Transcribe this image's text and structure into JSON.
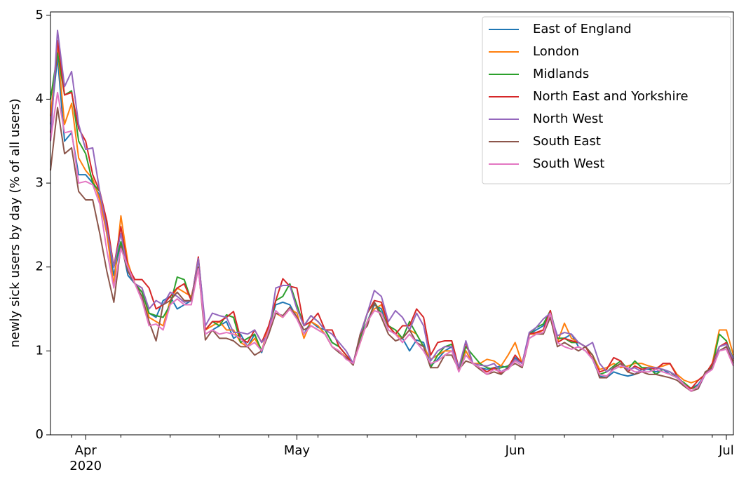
{
  "chart_data": {
    "type": "line",
    "ylabel": "newly sick users by day (% of all users)",
    "xlim": [
      0,
      97
    ],
    "xticks": [
      {
        "value": 5,
        "label": "Apr\n2020"
      },
      {
        "value": 35,
        "label": "May"
      },
      {
        "value": 66,
        "label": "Jun"
      },
      {
        "value": 96,
        "label": "Jul"
      }
    ],
    "xminorticks": [
      3,
      10,
      17,
      24,
      31,
      38,
      45,
      52,
      59,
      73,
      80,
      87,
      94
    ],
    "ylim": [
      0,
      5.04
    ],
    "yticks": [
      0,
      1,
      2,
      3,
      4,
      5
    ],
    "grid": false,
    "legend": "upper right",
    "series": [
      {
        "name": "East of England",
        "color": "#1f77b4",
        "values": [
          3.7,
          4.5,
          3.5,
          3.6,
          3.1,
          3.1,
          3.0,
          2.85,
          2.4,
          1.9,
          2.3,
          1.9,
          1.8,
          1.7,
          1.45,
          1.4,
          1.6,
          1.65,
          1.5,
          1.55,
          1.6,
          2.0,
          1.2,
          1.25,
          1.3,
          1.35,
          1.15,
          1.2,
          1.05,
          1.2,
          0.98,
          1.3,
          1.55,
          1.58,
          1.55,
          1.4,
          1.2,
          1.35,
          1.28,
          1.25,
          1.1,
          1.05,
          0.95,
          0.85,
          1.15,
          1.35,
          1.55,
          1.5,
          1.25,
          1.2,
          1.15,
          1.0,
          1.13,
          1.1,
          0.82,
          0.9,
          1.0,
          1.05,
          0.78,
          1.0,
          0.85,
          0.8,
          0.78,
          0.8,
          0.82,
          0.8,
          0.92,
          0.85,
          1.2,
          1.25,
          1.3,
          1.45,
          1.15,
          1.15,
          1.2,
          1.05,
          1.0,
          0.9,
          0.7,
          0.68,
          0.75,
          0.72,
          0.7,
          0.72,
          0.78,
          0.78,
          0.75,
          0.78,
          0.72,
          0.68,
          0.6,
          0.55,
          0.6,
          0.72,
          0.85,
          1.0,
          1.05,
          0.92
        ]
      },
      {
        "name": "London",
        "color": "#ff7f0e",
        "values": [
          3.8,
          4.6,
          3.7,
          3.95,
          3.3,
          3.15,
          3.05,
          2.8,
          2.4,
          1.78,
          2.61,
          2.05,
          1.8,
          1.75,
          1.4,
          1.35,
          1.3,
          1.6,
          1.75,
          1.7,
          1.65,
          2.0,
          1.25,
          1.3,
          1.35,
          1.25,
          1.25,
          1.1,
          1.05,
          1.15,
          1.0,
          1.3,
          1.45,
          1.4,
          1.5,
          1.45,
          1.15,
          1.35,
          1.3,
          1.2,
          1.05,
          1.0,
          0.92,
          0.85,
          1.1,
          1.35,
          1.5,
          1.55,
          1.3,
          1.2,
          1.15,
          1.25,
          1.2,
          1.05,
          0.9,
          0.95,
          1.0,
          1.0,
          0.8,
          1.0,
          0.85,
          0.85,
          0.9,
          0.88,
          0.82,
          0.95,
          1.1,
          0.85,
          1.2,
          1.2,
          1.25,
          1.4,
          1.1,
          1.33,
          1.15,
          1.1,
          1.05,
          0.95,
          0.78,
          0.8,
          0.85,
          0.8,
          0.82,
          0.85,
          0.85,
          0.82,
          0.8,
          0.82,
          0.85,
          0.72,
          0.65,
          0.62,
          0.65,
          0.72,
          0.85,
          1.25,
          1.25,
          0.95
        ]
      },
      {
        "name": "Midlands",
        "color": "#2ca02c",
        "values": [
          4.0,
          4.55,
          4.05,
          4.1,
          3.5,
          3.35,
          3.0,
          2.9,
          2.5,
          2.0,
          2.3,
          2.0,
          1.8,
          1.7,
          1.45,
          1.42,
          1.4,
          1.55,
          1.88,
          1.85,
          1.6,
          2.1,
          1.25,
          1.35,
          1.3,
          1.43,
          1.4,
          1.1,
          1.15,
          1.2,
          1.0,
          1.25,
          1.6,
          1.65,
          1.8,
          1.55,
          1.3,
          1.42,
          1.35,
          1.25,
          1.1,
          1.05,
          0.95,
          0.85,
          1.15,
          1.45,
          1.58,
          1.45,
          1.3,
          1.25,
          1.15,
          1.35,
          1.2,
          1.05,
          0.8,
          0.95,
          1.05,
          1.08,
          0.78,
          1.05,
          0.95,
          0.85,
          0.8,
          0.78,
          0.8,
          0.82,
          0.9,
          0.85,
          1.2,
          1.28,
          1.32,
          1.48,
          1.15,
          1.15,
          1.1,
          1.1,
          1.05,
          0.95,
          0.72,
          0.75,
          0.82,
          0.88,
          0.78,
          0.88,
          0.8,
          0.8,
          0.72,
          0.78,
          0.75,
          0.68,
          0.62,
          0.55,
          0.58,
          0.72,
          0.82,
          1.2,
          1.12,
          0.9
        ]
      },
      {
        "name": "North East and Yorkshire",
        "color": "#d62728",
        "values": [
          3.6,
          4.7,
          4.05,
          4.08,
          3.65,
          3.5,
          3.1,
          2.9,
          2.55,
          2.0,
          2.48,
          2.0,
          1.85,
          1.85,
          1.75,
          1.5,
          1.55,
          1.65,
          1.75,
          1.8,
          1.6,
          2.12,
          1.25,
          1.35,
          1.35,
          1.4,
          1.47,
          1.15,
          1.1,
          1.25,
          1.1,
          1.3,
          1.6,
          1.86,
          1.77,
          1.75,
          1.3,
          1.35,
          1.45,
          1.25,
          1.25,
          1.05,
          0.95,
          0.85,
          1.2,
          1.45,
          1.6,
          1.58,
          1.3,
          1.2,
          1.3,
          1.3,
          1.5,
          1.4,
          0.95,
          1.1,
          1.12,
          1.12,
          0.8,
          1.1,
          0.85,
          0.8,
          0.75,
          0.8,
          0.73,
          0.8,
          0.95,
          0.85,
          1.2,
          1.22,
          1.25,
          1.48,
          1.1,
          1.15,
          1.12,
          1.1,
          1.05,
          0.9,
          0.75,
          0.78,
          0.92,
          0.88,
          0.75,
          0.82,
          0.78,
          0.8,
          0.78,
          0.85,
          0.85,
          0.7,
          0.6,
          0.55,
          0.65,
          0.72,
          0.85,
          1.05,
          1.1,
          0.88
        ]
      },
      {
        "name": "North West",
        "color": "#9467bd",
        "values": [
          3.5,
          4.82,
          4.15,
          4.33,
          3.7,
          3.4,
          3.42,
          2.9,
          2.45,
          2.0,
          2.4,
          1.95,
          1.8,
          1.75,
          1.5,
          1.6,
          1.55,
          1.7,
          1.65,
          1.58,
          1.6,
          2.1,
          1.3,
          1.45,
          1.42,
          1.4,
          1.22,
          1.22,
          1.2,
          1.25,
          1.1,
          1.2,
          1.75,
          1.78,
          1.78,
          1.5,
          1.3,
          1.42,
          1.35,
          1.25,
          1.2,
          1.1,
          1.0,
          0.85,
          1.2,
          1.45,
          1.72,
          1.65,
          1.35,
          1.48,
          1.4,
          1.25,
          1.45,
          1.3,
          0.88,
          1.0,
          1.05,
          1.05,
          0.8,
          1.12,
          0.85,
          0.83,
          0.82,
          0.85,
          0.75,
          0.8,
          0.9,
          0.85,
          1.22,
          1.28,
          1.38,
          1.45,
          1.18,
          1.22,
          1.2,
          1.1,
          1.05,
          1.1,
          0.85,
          0.75,
          0.8,
          0.85,
          0.78,
          0.8,
          0.75,
          0.8,
          0.8,
          0.78,
          0.75,
          0.7,
          0.6,
          0.52,
          0.55,
          0.72,
          0.8,
          1.05,
          1.08,
          0.9
        ]
      },
      {
        "name": "South East",
        "color": "#8c564b",
        "values": [
          3.15,
          3.9,
          3.35,
          3.42,
          2.9,
          2.8,
          2.8,
          2.4,
          1.95,
          1.58,
          2.25,
          1.95,
          1.8,
          1.65,
          1.35,
          1.12,
          1.55,
          1.6,
          1.7,
          1.6,
          1.6,
          2.0,
          1.13,
          1.25,
          1.15,
          1.15,
          1.12,
          1.05,
          1.05,
          0.95,
          1.0,
          1.2,
          1.45,
          1.42,
          1.52,
          1.4,
          1.25,
          1.3,
          1.25,
          1.2,
          1.05,
          0.98,
          0.92,
          0.83,
          1.2,
          1.3,
          1.58,
          1.4,
          1.2,
          1.12,
          1.15,
          1.25,
          1.1,
          1.05,
          0.8,
          0.8,
          0.95,
          0.95,
          0.78,
          0.88,
          0.85,
          0.78,
          0.72,
          0.75,
          0.72,
          0.8,
          0.85,
          0.8,
          1.15,
          1.2,
          1.2,
          1.4,
          1.05,
          1.1,
          1.05,
          1.0,
          1.05,
          0.95,
          0.68,
          0.68,
          0.8,
          0.85,
          0.75,
          0.72,
          0.75,
          0.72,
          0.72,
          0.7,
          0.68,
          0.65,
          0.58,
          0.52,
          0.55,
          0.75,
          0.8,
          1.0,
          1.05,
          0.85
        ]
      },
      {
        "name": "South West",
        "color": "#e377c2",
        "values": [
          3.5,
          4.08,
          3.6,
          3.62,
          3.0,
          3.02,
          2.98,
          2.75,
          2.2,
          1.75,
          2.22,
          2.0,
          1.8,
          1.6,
          1.3,
          1.32,
          1.25,
          1.55,
          1.62,
          1.55,
          1.55,
          1.98,
          1.2,
          1.25,
          1.2,
          1.22,
          1.2,
          1.15,
          1.05,
          1.1,
          1.0,
          1.25,
          1.48,
          1.4,
          1.5,
          1.38,
          1.2,
          1.3,
          1.25,
          1.2,
          1.05,
          1.0,
          0.9,
          0.85,
          1.1,
          1.35,
          1.48,
          1.45,
          1.25,
          1.2,
          1.1,
          1.2,
          1.1,
          1.0,
          0.85,
          0.88,
          0.95,
          1.0,
          0.75,
          0.95,
          0.85,
          0.8,
          0.72,
          0.78,
          0.75,
          0.78,
          0.88,
          0.82,
          1.15,
          1.2,
          1.22,
          1.45,
          1.1,
          1.05,
          1.02,
          1.05,
          1.0,
          0.9,
          0.72,
          0.7,
          0.78,
          0.82,
          0.8,
          0.75,
          0.75,
          0.75,
          0.78,
          0.75,
          0.72,
          0.68,
          0.6,
          0.52,
          0.58,
          0.72,
          0.78,
          1.0,
          1.02,
          0.82
        ]
      }
    ]
  }
}
